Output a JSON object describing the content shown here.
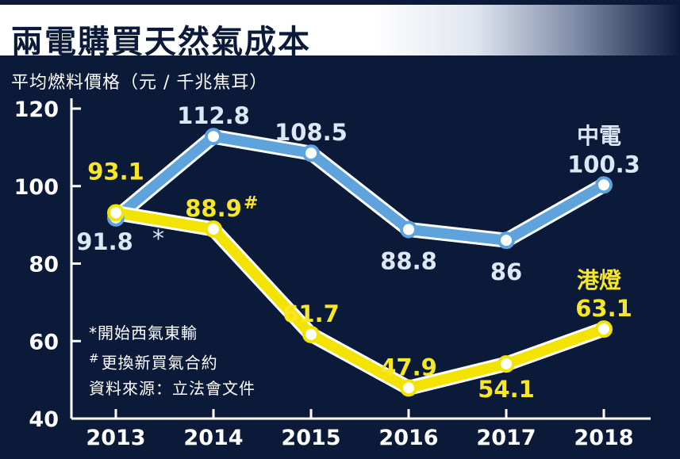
{
  "header": {
    "title": "兩電購買天然氣成本"
  },
  "chart_data": {
    "type": "line",
    "title": "兩電購買天然氣成本",
    "ylabel": "平均燃料價格（元 / 千兆焦耳）",
    "xlabel": "",
    "categories": [
      "2013",
      "2014",
      "2015",
      "2016",
      "2017",
      "2018"
    ],
    "ylim": [
      40,
      120
    ],
    "yticks": [
      "40",
      "60",
      "80",
      "100",
      "120"
    ],
    "grid": false,
    "series": [
      {
        "name": "中電",
        "color": "#5ea3dc",
        "values": [
          91.8,
          112.8,
          108.5,
          88.8,
          86,
          100.3
        ],
        "labels": [
          "91.8",
          "112.8",
          "108.5",
          "88.8",
          "86",
          "100.3"
        ],
        "label_color": "#dce8f5",
        "marker": "*"
      },
      {
        "name": "港燈",
        "color": "#f2e300",
        "values": [
          93.1,
          88.9,
          61.7,
          47.9,
          54.1,
          63.1
        ],
        "labels": [
          "93.1",
          "88.9",
          "61.7",
          "47.9",
          "54.1",
          "63.1"
        ],
        "label_color": "#f7e726",
        "marker": "#"
      }
    ],
    "annotations": {
      "star_note": "開始西氣東輸",
      "hash_note": "更換新買氣合約",
      "source": "資料來源：立法會文件",
      "star_symbol": "*",
      "hash_symbol": "#"
    }
  }
}
